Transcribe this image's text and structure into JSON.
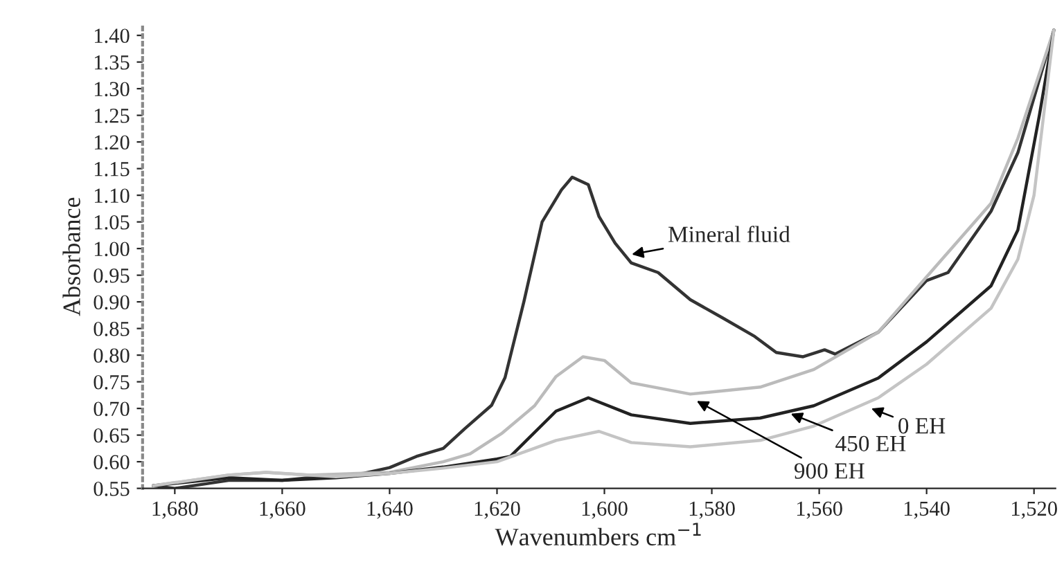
{
  "chart_data": {
    "type": "line",
    "xlabel": "Wavenumbers cm$^{−1}$",
    "ylabel": "Absorbance",
    "xlim": [
      1686,
      1516
    ],
    "ylim": [
      0.55,
      1.42
    ],
    "xticks": [
      {
        "value": 1680,
        "label": "1,680"
      },
      {
        "value": 1660,
        "label": "1,660"
      },
      {
        "value": 1640,
        "label": "1,640"
      },
      {
        "value": 1620,
        "label": "1,620"
      },
      {
        "value": 1600,
        "label": "1,600"
      },
      {
        "value": 1580,
        "label": "1,580"
      },
      {
        "value": 1560,
        "label": "1,560"
      },
      {
        "value": 1540,
        "label": "1,540"
      },
      {
        "value": 1520,
        "label": "1,520"
      }
    ],
    "yticks": [
      {
        "value": 0.55,
        "label": "0.55"
      },
      {
        "value": 0.6,
        "label": "0.60"
      },
      {
        "value": 0.65,
        "label": "0.65"
      },
      {
        "value": 0.7,
        "label": "0.70"
      },
      {
        "value": 0.75,
        "label": "0.75"
      },
      {
        "value": 0.8,
        "label": "0.80"
      },
      {
        "value": 0.85,
        "label": "0.85"
      },
      {
        "value": 0.9,
        "label": "0.90"
      },
      {
        "value": 0.95,
        "label": "0.95"
      },
      {
        "value": 1.0,
        "label": "1.00"
      },
      {
        "value": 1.05,
        "label": "1.05"
      },
      {
        "value": 1.1,
        "label": "1.10"
      },
      {
        "value": 1.15,
        "label": "1.15"
      },
      {
        "value": 1.2,
        "label": "1.20"
      },
      {
        "value": 1.25,
        "label": "1.25"
      },
      {
        "value": 1.3,
        "label": "1.30"
      },
      {
        "value": 1.35,
        "label": "1.35"
      },
      {
        "value": 1.4,
        "label": "1.40"
      }
    ],
    "grid": false,
    "marker": "none",
    "line_style": "solid",
    "series": [
      {
        "color": "#333333",
        "x": [
          1684,
          1680,
          1670,
          1660,
          1655,
          1650,
          1645,
          1640,
          1635,
          1630,
          1626,
          1621,
          1618.5,
          1615,
          1611.6,
          1608,
          1606,
          1603,
          1601,
          1598,
          1595,
          1590,
          1584,
          1578,
          1572,
          1568,
          1563,
          1559,
          1557,
          1549,
          1540,
          1536,
          1528,
          1523,
          1516.3
        ],
        "values": [
          0.555,
          0.55,
          0.565,
          0.565,
          0.57,
          0.572,
          0.578,
          0.589,
          0.61,
          0.625,
          0.662,
          0.706,
          0.758,
          0.9,
          1.05,
          1.11,
          1.134,
          1.12,
          1.06,
          1.01,
          0.973,
          0.955,
          0.904,
          0.87,
          0.835,
          0.805,
          0.797,
          0.81,
          0.802,
          0.843,
          0.94,
          0.955,
          1.07,
          1.18,
          1.41
        ]
      },
      {
        "color": "#bbbbbb",
        "x": [
          1684,
          1670,
          1663,
          1655,
          1640,
          1630,
          1625,
          1619,
          1613,
          1609,
          1604,
          1600,
          1595,
          1584,
          1571,
          1561,
          1549,
          1540,
          1528,
          1523,
          1516.3
        ],
        "values": [
          0.555,
          0.575,
          0.58,
          0.575,
          0.58,
          0.6,
          0.615,
          0.654,
          0.705,
          0.76,
          0.797,
          0.79,
          0.748,
          0.727,
          0.74,
          0.773,
          0.843,
          0.947,
          1.085,
          1.207,
          1.41
        ]
      },
      {
        "color": "#222222",
        "x": [
          1684,
          1670,
          1660,
          1650,
          1640,
          1630,
          1620,
          1617.5,
          1609,
          1603,
          1595,
          1584,
          1571,
          1561,
          1549,
          1540,
          1528,
          1523,
          1519,
          1516.3
        ],
        "values": [
          0.555,
          0.57,
          0.565,
          0.57,
          0.578,
          0.59,
          0.605,
          0.61,
          0.695,
          0.72,
          0.688,
          0.672,
          0.682,
          0.705,
          0.757,
          0.825,
          0.93,
          1.035,
          1.25,
          1.41
        ]
      },
      {
        "color": "#c4c4c4",
        "x": [
          1684,
          1670,
          1663,
          1650,
          1640,
          1630,
          1620,
          1609,
          1601,
          1595,
          1584,
          1571,
          1561,
          1549,
          1540,
          1528,
          1523,
          1520,
          1516.3
        ],
        "values": [
          0.555,
          0.575,
          0.58,
          0.572,
          0.578,
          0.588,
          0.6,
          0.64,
          0.657,
          0.636,
          0.628,
          0.64,
          0.667,
          0.72,
          0.783,
          0.888,
          0.98,
          1.1,
          1.41
        ]
      }
    ],
    "annotations": [
      {
        "text": "Mineral fluid",
        "x": 1594.9,
        "y": 0.989
      },
      {
        "text": "0 EH",
        "x": 1550.3,
        "y": 0.7
      },
      {
        "text": "450 EH",
        "x": 1565.3,
        "y": 0.69
      },
      {
        "text": "900 EH",
        "x": 1582.8,
        "y": 0.714
      }
    ]
  }
}
